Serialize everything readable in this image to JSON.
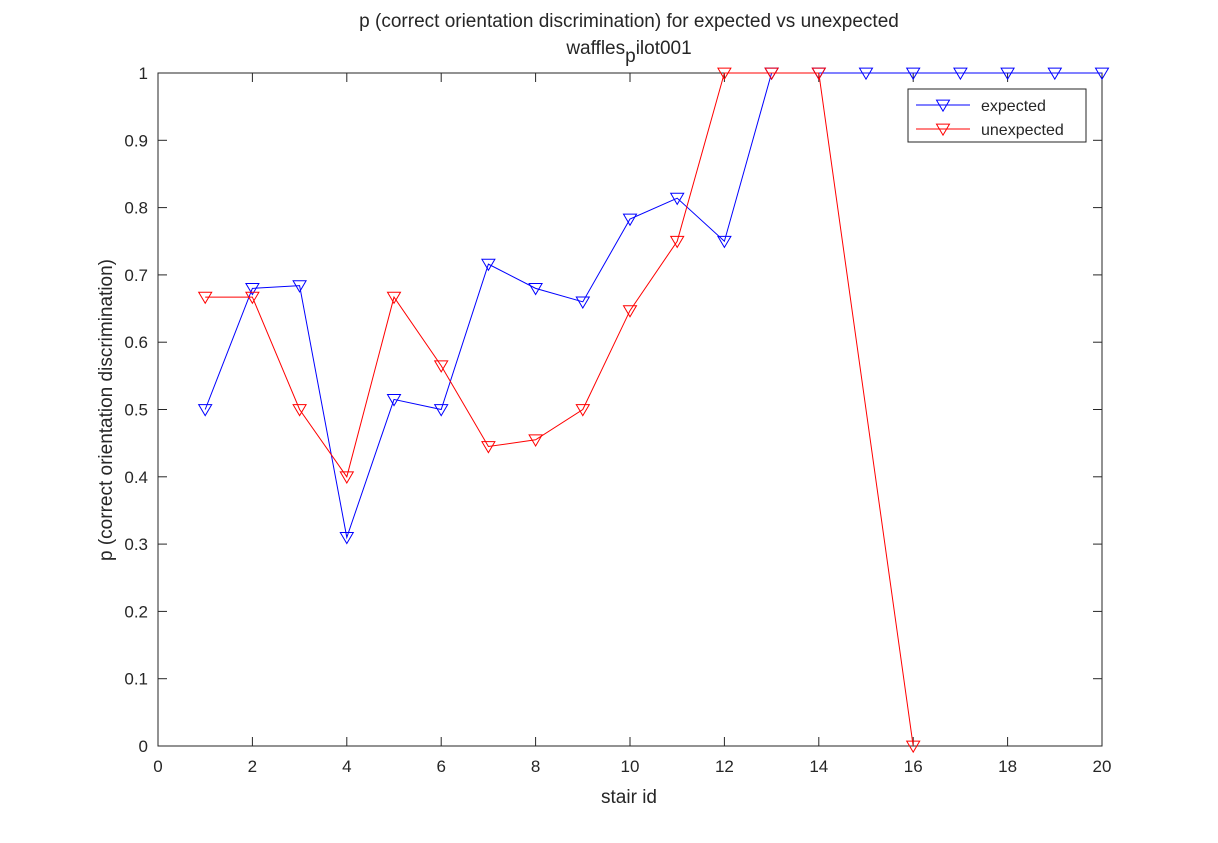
{
  "chart_data": {
    "type": "line",
    "title": "p (correct orientation discrimination) for expected vs unexpected",
    "subtitle_main": "waffles",
    "subtitle_sub": "p",
    "subtitle_rest": "ilot001",
    "xlabel": "stair id",
    "ylabel": "p (correct orientation discrimination)",
    "xlim": [
      0,
      20
    ],
    "ylim": [
      0,
      1
    ],
    "xticks": [
      0,
      2,
      4,
      6,
      8,
      10,
      12,
      14,
      16,
      18,
      20
    ],
    "yticks": [
      0,
      0.1,
      0.2,
      0.3,
      0.4,
      0.5,
      0.6,
      0.7,
      0.8,
      0.9,
      1
    ],
    "grid": false,
    "legend_position": "top-right",
    "marker": "down-triangle",
    "series": [
      {
        "name": "expected",
        "color": "#0000ff",
        "x": [
          1,
          2,
          3,
          4,
          5,
          6,
          7,
          8,
          9,
          10,
          11,
          12,
          13,
          14,
          15,
          16,
          17,
          18,
          19,
          20
        ],
        "y": [
          0.5,
          0.68,
          0.684,
          0.31,
          0.515,
          0.5,
          0.716,
          0.68,
          0.66,
          0.783,
          0.814,
          0.75,
          1,
          1,
          1,
          1,
          1,
          1,
          1,
          1
        ]
      },
      {
        "name": "unexpected",
        "color": "#ff0000",
        "x": [
          1,
          2,
          3,
          4,
          5,
          6,
          7,
          8,
          9,
          10,
          11,
          12,
          13,
          14,
          16
        ],
        "y": [
          0.667,
          0.667,
          0.5,
          0.4,
          0.667,
          0.565,
          0.445,
          0.455,
          0.5,
          0.647,
          0.75,
          1,
          1,
          1,
          0
        ]
      }
    ]
  }
}
